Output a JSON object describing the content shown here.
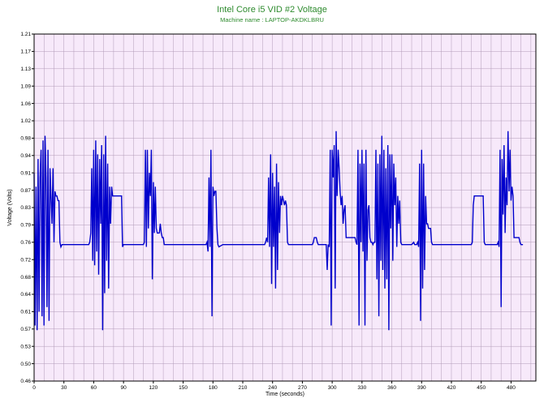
{
  "chart_data": {
    "type": "line",
    "title": "Intel Core i5 VID #2 Voltage",
    "subtitle": "Machine name : LAPTOP-AKDKLBRU",
    "xlabel": "Time (seconds)",
    "ylabel": "Voltage (Volts)",
    "xlim": [
      0,
      505
    ],
    "ylim": [
      0.46,
      1.21
    ],
    "xticks": [
      "0",
      "30",
      "60",
      "90",
      "120",
      "150",
      "180",
      "210",
      "240",
      "270",
      "300",
      "330",
      "360",
      "390",
      "420",
      "450",
      "480"
    ],
    "yticks": [
      "0.46",
      "0.50",
      "0.53",
      "0.57",
      "0.61",
      "0.64",
      "0.68",
      "0.72",
      "0.76",
      "0.79",
      "0.83",
      "0.87",
      "0.91",
      "0.94",
      "0.98",
      "1.02",
      "1.06",
      "1.09",
      "1.13",
      "1.17",
      "1.21"
    ],
    "grid": true,
    "colors": {
      "line": "#0000cc",
      "plot_bg": "#f7e9fa",
      "grid": "#b19ab8",
      "title": "#2e8b2e"
    },
    "series": [
      {
        "values": [
          [
            0,
            0.91
          ],
          [
            1,
            0.58
          ],
          [
            2,
            0.88
          ],
          [
            3,
            0.57
          ],
          [
            4,
            0.94
          ],
          [
            5,
            0.61
          ],
          [
            6,
            0.9
          ],
          [
            7,
            0.96
          ],
          [
            8,
            0.6
          ],
          [
            9,
            0.98
          ],
          [
            10,
            0.58
          ],
          [
            11,
            0.99
          ],
          [
            12,
            0.9
          ],
          [
            13,
            0.62
          ],
          [
            14,
            0.96
          ],
          [
            15,
            0.59
          ],
          [
            16,
            0.92
          ],
          [
            17,
            0.86
          ],
          [
            18,
            0.8
          ],
          [
            19,
            0.92
          ],
          [
            20,
            0.76
          ],
          [
            21,
            0.87
          ],
          [
            22,
            0.86
          ],
          [
            23,
            0.86
          ],
          [
            24,
            0.85
          ],
          [
            25,
            0.85
          ],
          [
            26,
            0.76
          ],
          [
            27,
            0.75
          ],
          [
            28,
            0.755
          ],
          [
            35,
            0.755
          ],
          [
            45,
            0.755
          ],
          [
            55,
            0.755
          ],
          [
            56,
            0.76
          ],
          [
            57,
            0.78
          ],
          [
            58,
            0.92
          ],
          [
            59,
            0.72
          ],
          [
            60,
            0.96
          ],
          [
            61,
            0.71
          ],
          [
            62,
            0.98
          ],
          [
            63,
            0.74
          ],
          [
            64,
            0.95
          ],
          [
            65,
            0.69
          ],
          [
            66,
            0.94
          ],
          [
            67,
            0.8
          ],
          [
            68,
            0.97
          ],
          [
            69,
            0.57
          ],
          [
            70,
            0.95
          ],
          [
            71,
            0.65
          ],
          [
            72,
            0.99
          ],
          [
            73,
            0.72
          ],
          [
            74,
            0.93
          ],
          [
            75,
            0.66
          ],
          [
            76,
            0.88
          ],
          [
            77,
            0.8
          ],
          [
            78,
            0.88
          ],
          [
            79,
            0.86
          ],
          [
            80,
            0.86
          ],
          [
            85,
            0.86
          ],
          [
            88,
            0.86
          ],
          [
            89,
            0.75
          ],
          [
            90,
            0.755
          ],
          [
            100,
            0.755
          ],
          [
            110,
            0.755
          ],
          [
            111,
            0.76
          ],
          [
            112,
            0.96
          ],
          [
            113,
            0.75
          ],
          [
            114,
            0.96
          ],
          [
            115,
            0.79
          ],
          [
            116,
            0.91
          ],
          [
            117,
            0.86
          ],
          [
            118,
            0.96
          ],
          [
            119,
            0.68
          ],
          [
            120,
            0.89
          ],
          [
            121,
            0.78
          ],
          [
            122,
            0.88
          ],
          [
            123,
            0.79
          ],
          [
            124,
            0.78
          ],
          [
            125,
            0.78
          ],
          [
            126,
            0.78
          ],
          [
            127,
            0.8
          ],
          [
            128,
            0.78
          ],
          [
            129,
            0.77
          ],
          [
            130,
            0.77
          ],
          [
            131,
            0.755
          ],
          [
            140,
            0.755
          ],
          [
            150,
            0.755
          ],
          [
            160,
            0.755
          ],
          [
            170,
            0.755
          ],
          [
            173,
            0.755
          ],
          [
            174,
            0.76
          ],
          [
            175,
            0.74
          ],
          [
            176,
            0.9
          ],
          [
            177,
            0.75
          ],
          [
            178,
            0.96
          ],
          [
            179,
            0.6
          ],
          [
            180,
            0.88
          ],
          [
            181,
            0.86
          ],
          [
            182,
            0.87
          ],
          [
            183,
            0.87
          ],
          [
            184,
            0.79
          ],
          [
            185,
            0.755
          ],
          [
            186,
            0.75
          ],
          [
            190,
            0.755
          ],
          [
            200,
            0.755
          ],
          [
            210,
            0.755
          ],
          [
            220,
            0.755
          ],
          [
            230,
            0.755
          ],
          [
            232,
            0.755
          ],
          [
            233,
            0.76
          ],
          [
            234,
            0.77
          ],
          [
            235,
            0.76
          ],
          [
            236,
            0.9
          ],
          [
            237,
            0.75
          ],
          [
            238,
            0.95
          ],
          [
            239,
            0.67
          ],
          [
            240,
            0.91
          ],
          [
            241,
            0.75
          ],
          [
            242,
            0.88
          ],
          [
            243,
            0.66
          ],
          [
            244,
            0.93
          ],
          [
            245,
            0.7
          ],
          [
            246,
            0.89
          ],
          [
            247,
            0.78
          ],
          [
            248,
            0.86
          ],
          [
            249,
            0.84
          ],
          [
            250,
            0.86
          ],
          [
            251,
            0.85
          ],
          [
            252,
            0.84
          ],
          [
            253,
            0.85
          ],
          [
            254,
            0.84
          ],
          [
            255,
            0.76
          ],
          [
            256,
            0.755
          ],
          [
            260,
            0.755
          ],
          [
            270,
            0.755
          ],
          [
            280,
            0.755
          ],
          [
            281,
            0.76
          ],
          [
            282,
            0.77
          ],
          [
            283,
            0.77
          ],
          [
            284,
            0.77
          ],
          [
            285,
            0.76
          ],
          [
            286,
            0.755
          ],
          [
            290,
            0.755
          ],
          [
            294,
            0.755
          ],
          [
            295,
            0.7
          ],
          [
            296,
            0.755
          ],
          [
            297,
            0.75
          ],
          [
            298,
            0.96
          ],
          [
            299,
            0.58
          ],
          [
            300,
            0.96
          ],
          [
            301,
            0.9
          ],
          [
            302,
            0.97
          ],
          [
            303,
            0.66
          ],
          [
            304,
            1.0
          ],
          [
            305,
            0.86
          ],
          [
            306,
            0.96
          ],
          [
            307,
            0.92
          ],
          [
            308,
            0.87
          ],
          [
            309,
            0.84
          ],
          [
            310,
            0.86
          ],
          [
            311,
            0.8
          ],
          [
            312,
            0.83
          ],
          [
            313,
            0.84
          ],
          [
            314,
            0.77
          ],
          [
            315,
            0.77
          ],
          [
            320,
            0.77
          ],
          [
            323,
            0.77
          ],
          [
            324,
            0.76
          ],
          [
            325,
            0.755
          ],
          [
            326,
            0.96
          ],
          [
            327,
            0.58
          ],
          [
            328,
            0.93
          ],
          [
            329,
            0.76
          ],
          [
            330,
            0.96
          ],
          [
            331,
            0.74
          ],
          [
            332,
            0.93
          ],
          [
            333,
            0.58
          ],
          [
            334,
            0.96
          ],
          [
            335,
            0.72
          ],
          [
            336,
            0.83
          ],
          [
            337,
            0.84
          ],
          [
            338,
            0.77
          ],
          [
            339,
            0.76
          ],
          [
            340,
            0.76
          ],
          [
            341,
            0.755
          ],
          [
            342,
            0.76
          ],
          [
            343,
            0.76
          ],
          [
            344,
            0.96
          ],
          [
            345,
            0.68
          ],
          [
            346,
            0.93
          ],
          [
            347,
            0.6
          ],
          [
            348,
            0.95
          ],
          [
            349,
            0.72
          ],
          [
            350,
            0.99
          ],
          [
            351,
            0.7
          ],
          [
            352,
            0.96
          ],
          [
            353,
            0.66
          ],
          [
            354,
            0.92
          ],
          [
            355,
            0.68
          ],
          [
            356,
            0.97
          ],
          [
            357,
            0.57
          ],
          [
            358,
            0.95
          ],
          [
            359,
            0.79
          ],
          [
            360,
            0.95
          ],
          [
            361,
            0.72
          ],
          [
            362,
            0.93
          ],
          [
            363,
            0.84
          ],
          [
            364,
            0.9
          ],
          [
            365,
            0.75
          ],
          [
            366,
            0.86
          ],
          [
            367,
            0.8
          ],
          [
            368,
            0.85
          ],
          [
            369,
            0.76
          ],
          [
            370,
            0.755
          ],
          [
            375,
            0.755
          ],
          [
            380,
            0.755
          ],
          [
            382,
            0.76
          ],
          [
            383,
            0.755
          ],
          [
            385,
            0.755
          ],
          [
            386,
            0.76
          ],
          [
            387,
            0.75
          ],
          [
            388,
            0.93
          ],
          [
            389,
            0.59
          ],
          [
            390,
            0.96
          ],
          [
            391,
            0.66
          ],
          [
            392,
            0.93
          ],
          [
            393,
            0.7
          ],
          [
            394,
            0.86
          ],
          [
            395,
            0.8
          ],
          [
            396,
            0.8
          ],
          [
            397,
            0.79
          ],
          [
            398,
            0.79
          ],
          [
            399,
            0.79
          ],
          [
            400,
            0.76
          ],
          [
            401,
            0.755
          ],
          [
            410,
            0.755
          ],
          [
            420,
            0.755
          ],
          [
            430,
            0.755
          ],
          [
            440,
            0.755
          ],
          [
            441,
            0.76
          ],
          [
            442,
            0.84
          ],
          [
            443,
            0.86
          ],
          [
            444,
            0.86
          ],
          [
            446,
            0.86
          ],
          [
            450,
            0.86
          ],
          [
            452,
            0.86
          ],
          [
            453,
            0.76
          ],
          [
            454,
            0.755
          ],
          [
            460,
            0.755
          ],
          [
            466,
            0.755
          ],
          [
            467,
            0.76
          ],
          [
            468,
            0.75
          ],
          [
            469,
            0.96
          ],
          [
            470,
            0.62
          ],
          [
            471,
            0.94
          ],
          [
            472,
            0.82
          ],
          [
            473,
            0.97
          ],
          [
            474,
            0.78
          ],
          [
            475,
            0.9
          ],
          [
            476,
            0.84
          ],
          [
            477,
            1.0
          ],
          [
            478,
            0.87
          ],
          [
            479,
            0.96
          ],
          [
            480,
            0.85
          ],
          [
            481,
            0.88
          ],
          [
            482,
            0.86
          ],
          [
            483,
            0.77
          ],
          [
            484,
            0.77
          ],
          [
            488,
            0.77
          ],
          [
            489,
            0.76
          ],
          [
            490,
            0.755
          ],
          [
            492,
            0.755
          ]
        ]
      }
    ]
  }
}
